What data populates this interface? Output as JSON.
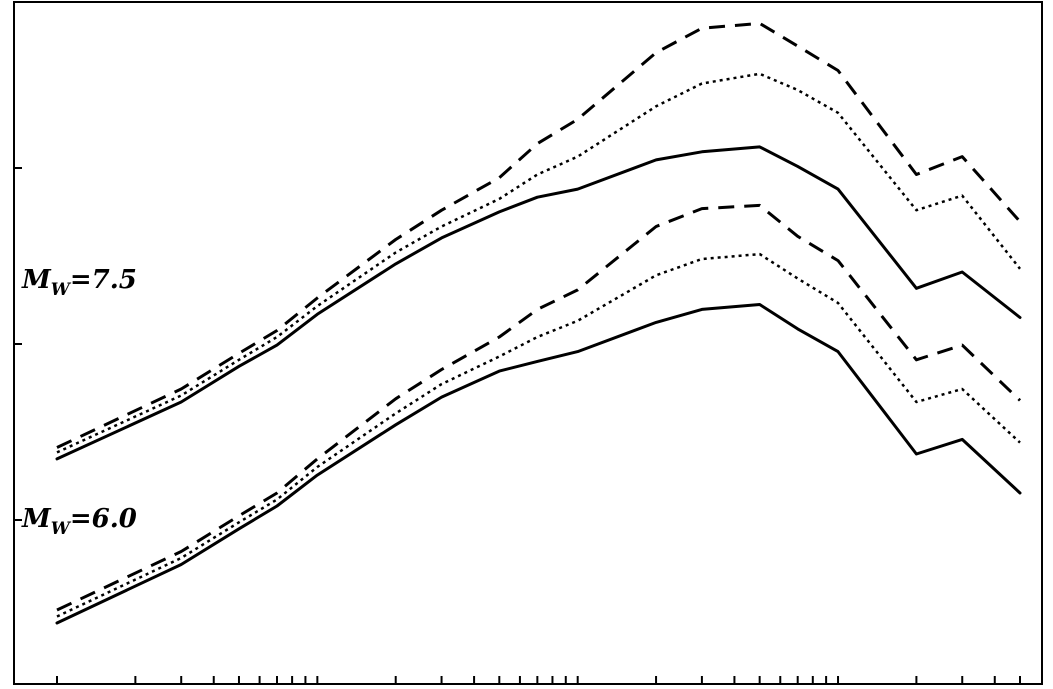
{
  "chart_data": {
    "type": "line",
    "title": "",
    "xlabel": "",
    "ylabel": "",
    "x_scale": "log",
    "grid": false,
    "legend": "none",
    "x": [
      1,
      3,
      5,
      7,
      10,
      20,
      30,
      50,
      70,
      100,
      200,
      300,
      500,
      700,
      1000,
      2000,
      3000,
      5000
    ],
    "groups": [
      {
        "label": {
          "base": "M",
          "sub": "W",
          "value": "=7.5"
        },
        "series": [
          {
            "style": "dashed",
            "values": [
              3.32,
              3.68,
              3.9,
              4.04,
              4.24,
              4.6,
              4.78,
              4.98,
              5.19,
              5.34,
              5.75,
              5.9,
              5.93,
              5.79,
              5.64,
              5.0,
              5.11,
              4.71
            ]
          },
          {
            "style": "dotted",
            "values": [
              3.29,
              3.64,
              3.86,
              4.0,
              4.19,
              4.52,
              4.68,
              4.85,
              5.0,
              5.11,
              5.42,
              5.56,
              5.62,
              5.52,
              5.38,
              4.78,
              4.87,
              4.42
            ]
          },
          {
            "style": "solid",
            "values": [
              3.25,
              3.6,
              3.82,
              3.95,
              4.14,
              4.45,
              4.61,
              4.77,
              4.86,
              4.91,
              5.09,
              5.14,
              5.17,
              5.05,
              4.91,
              4.3,
              4.4,
              4.12
            ]
          }
        ]
      },
      {
        "label": {
          "base": "M",
          "sub": "W",
          "value": "=6.0"
        },
        "series": [
          {
            "style": "dashed",
            "values": [
              2.32,
              2.68,
              2.9,
              3.04,
              3.25,
              3.62,
              3.8,
              4.0,
              4.17,
              4.29,
              4.68,
              4.79,
              4.81,
              4.62,
              4.47,
              3.86,
              3.95,
              3.61
            ]
          },
          {
            "style": "dotted",
            "values": [
              2.28,
              2.64,
              2.86,
              3.0,
              3.2,
              3.53,
              3.71,
              3.88,
              4.0,
              4.1,
              4.38,
              4.48,
              4.51,
              4.36,
              4.21,
              3.6,
              3.68,
              3.35
            ]
          },
          {
            "style": "solid",
            "values": [
              2.24,
              2.6,
              2.82,
              2.96,
              3.15,
              3.46,
              3.63,
              3.79,
              3.85,
              3.91,
              4.09,
              4.17,
              4.2,
              4.05,
              3.91,
              3.28,
              3.37,
              3.04
            ]
          }
        ]
      }
    ],
    "ylim": [
      2.0,
      6.0
    ],
    "xlim": [
      1,
      5000
    ]
  }
}
